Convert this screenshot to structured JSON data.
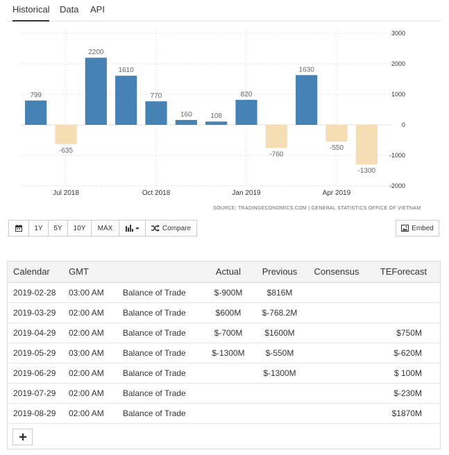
{
  "tabs": {
    "historical": "Historical",
    "data": "Data",
    "api": "API"
  },
  "chart_data": {
    "type": "bar",
    "title": "",
    "xlabel": "",
    "ylabel": "",
    "categories": [
      "2018-06",
      "2018-07",
      "2018-08",
      "2018-09",
      "2018-10",
      "2018-11",
      "2018-12",
      "2019-01",
      "2019-02",
      "2019-03",
      "2019-04",
      "2019-05"
    ],
    "values": [
      799,
      -635,
      2200,
      1610,
      770,
      160,
      108,
      820,
      -760,
      1630,
      -550,
      -1300
    ],
    "data_labels": [
      "799",
      "-635",
      "2200",
      "1610",
      "770",
      "160",
      "108",
      "820",
      "-760",
      "1630",
      "-550",
      "-1300"
    ],
    "x_tick_labels": [
      {
        "category": "2018-07",
        "label": "Jul 2018"
      },
      {
        "category": "2018-10",
        "label": "Oct 2018"
      },
      {
        "category": "2019-01",
        "label": "Jan 2019"
      },
      {
        "category": "2019-04",
        "label": "Apr 2019"
      }
    ],
    "y_ticks": [
      3000,
      2000,
      1000,
      0,
      -1000,
      -2000
    ],
    "ylim": [
      -2000,
      3000
    ],
    "y_axis_side": "right",
    "grid": true,
    "positive_color": "#4682b4",
    "negative_color": "#f5deb3",
    "source": "SOURCE: TRADINGECONOMICS.COM  |  GENERAL STATISTICS OFFICE OF VIETNAM"
  },
  "toolbar": {
    "calendar_icon": "calendar-icon",
    "btn_1y": "1Y",
    "btn_5y": "5Y",
    "btn_10y": "10Y",
    "btn_max": "MAX",
    "chart_type_icon": "bar-chart-icon",
    "compare_icon": "shuffle-icon",
    "compare_label": "Compare",
    "embed_icon": "image-icon",
    "embed_label": "Embed"
  },
  "calendar_table": {
    "headers": {
      "calendar": "Calendar",
      "gmt": "GMT",
      "event": "",
      "actual": "Actual",
      "previous": "Previous",
      "consensus": "Consensus",
      "teforecast": "TEForecast"
    },
    "rows": [
      {
        "date": "2019-02-28",
        "time": "03:00 AM",
        "event": "Balance of Trade",
        "actual": "$-900M",
        "previous": "$816M",
        "consensus": "",
        "teforecast": ""
      },
      {
        "date": "2019-03-29",
        "time": "02:00 AM",
        "event": "Balance of Trade",
        "actual": "$600M",
        "previous": "$-768.2M",
        "consensus": "",
        "teforecast": ""
      },
      {
        "date": "2019-04-29",
        "time": "02:00 AM",
        "event": "Balance of Trade",
        "actual": "$-700M",
        "previous": "$1600M",
        "consensus": "",
        "teforecast": "$750M"
      },
      {
        "date": "2019-05-29",
        "time": "03:00 AM",
        "event": "Balance of Trade",
        "actual": "$-1300M",
        "previous": "$-550M",
        "consensus": "",
        "teforecast": "$-620M"
      },
      {
        "date": "2019-06-29",
        "time": "02:00 AM",
        "event": "Balance of Trade",
        "actual": "",
        "previous": "$-1300M",
        "consensus": "",
        "teforecast": "$ 100M"
      },
      {
        "date": "2019-07-29",
        "time": "02:00 AM",
        "event": "Balance of Trade",
        "actual": "",
        "previous": "",
        "consensus": "",
        "teforecast": "$-230M"
      },
      {
        "date": "2019-08-29",
        "time": "02:00 AM",
        "event": "Balance of Trade",
        "actual": "",
        "previous": "",
        "consensus": "",
        "teforecast": "$1870M"
      }
    ],
    "add_icon": "plus-icon"
  }
}
